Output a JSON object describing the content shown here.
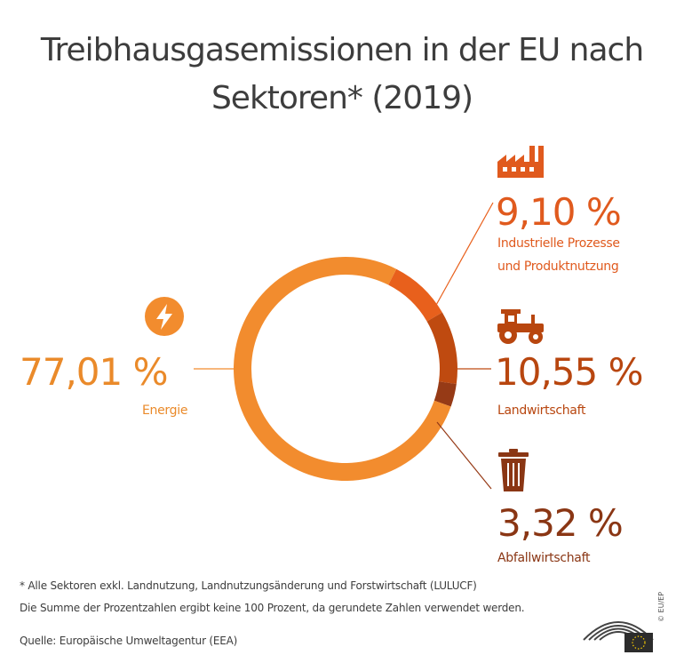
{
  "title": {
    "line1": "Treibhausgasemissionen in der EU nach",
    "line2": "Sektoren* (2019)"
  },
  "colors": {
    "energie": "#f28c2e",
    "industrie": "#e8601c",
    "landwirtschaft": "#bf4a10",
    "abfall": "#963a16",
    "label_orange": "#ea8a2a",
    "label_industrie": "#e05a1e",
    "label_land": "#b8460f",
    "label_abfall": "#8a3614",
    "text": "#3d3d3d"
  },
  "chart_data": {
    "type": "pie",
    "variant": "donut",
    "slices": [
      {
        "label": "Energie",
        "value": 77.01,
        "display": "77,01 %",
        "icon": "lightning-icon"
      },
      {
        "label": "Industrielle Prozesse und Produktnutzung",
        "value": 9.1,
        "display": "9,10 %",
        "icon": "factory-icon"
      },
      {
        "label": "Landwirtschaft",
        "value": 10.55,
        "display": "10,55 %",
        "icon": "tractor-icon"
      },
      {
        "label": "Abfallwirtschaft",
        "value": 3.32,
        "display": "3,32 %",
        "icon": "trash-can-icon"
      }
    ]
  },
  "labels": {
    "energie_pct": "77,01 %",
    "energie_name": "Energie",
    "industrie_pct": "9,10 %",
    "industrie_name_1": "Industrielle Prozesse",
    "industrie_name_2": "und Produktnutzung",
    "land_pct": "10,55 %",
    "land_name": "Landwirtschaft",
    "abfall_pct": "3,32 %",
    "abfall_name": "Abfallwirtschaft"
  },
  "footnotes": {
    "note1": "* Alle Sektoren exkl. Landnutzung, Landnutzungsänderung und Forstwirtschaft (LULUCF)",
    "note2": "Die Summe der Prozentzahlen ergibt keine 100 Prozent, da gerundete Zahlen verwendet werden.",
    "source": "Quelle: Europäische Umweltagentur (EEA)"
  },
  "credit": "© EU/EP"
}
